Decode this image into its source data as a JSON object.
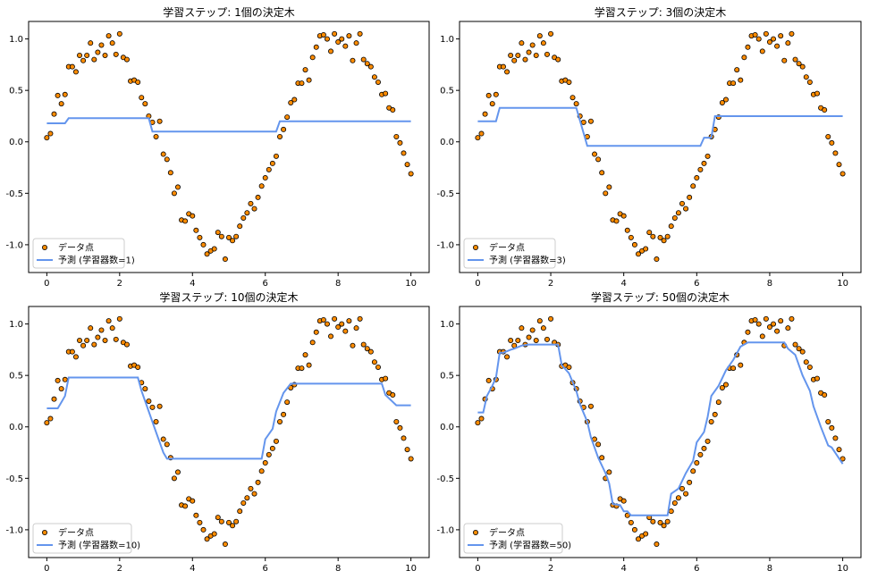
{
  "colors": {
    "point_fill": "#ff8c00",
    "point_edge": "#000000",
    "line": "#6495ed",
    "axes": "#000000",
    "background": "#ffffff"
  },
  "chart_data": [
    {
      "type": "scatter",
      "title": "学習ステップ: 1個の決定木",
      "xlabel": "",
      "ylabel": "",
      "xlim": [
        -0.5,
        10.5
      ],
      "ylim": [
        -1.27,
        1.17
      ],
      "xticks": [
        0,
        2,
        4,
        6,
        8,
        10
      ],
      "yticks": [
        -1.0,
        -0.5,
        0.0,
        0.5,
        1.0
      ],
      "ytick_labels": [
        "-1.0",
        "-0.5",
        "0.0",
        "0.5",
        "1.0"
      ],
      "grid": false,
      "legend_position": "lower-left",
      "series": [
        {
          "name": "データ点",
          "kind": "scatter"
        },
        {
          "name": "予測 (学習器数=1)",
          "kind": "line",
          "x": [
            0,
            0.5,
            0.6,
            2.8,
            2.9,
            6.3,
            6.4,
            10
          ],
          "y": [
            0.18,
            0.18,
            0.23,
            0.23,
            0.1,
            0.1,
            0.2,
            0.2
          ]
        }
      ]
    },
    {
      "type": "scatter",
      "title": "学習ステップ: 3個の決定木",
      "xlabel": "",
      "ylabel": "",
      "xlim": [
        -0.5,
        10.5
      ],
      "ylim": [
        -1.27,
        1.17
      ],
      "xticks": [
        0,
        2,
        4,
        6,
        8,
        10
      ],
      "yticks": [
        -1.0,
        -0.5,
        0.0,
        0.5,
        1.0
      ],
      "ytick_labels": [
        "-1.0",
        "-0.5",
        "0.0",
        "0.5",
        "1.0"
      ],
      "grid": false,
      "legend_position": "lower-left",
      "series": [
        {
          "name": "データ点",
          "kind": "scatter"
        },
        {
          "name": "予測 (学習器数=3)",
          "kind": "line",
          "x": [
            0,
            0.5,
            0.6,
            2.7,
            3.0,
            6.1,
            6.2,
            6.4,
            6.5,
            10
          ],
          "y": [
            0.2,
            0.2,
            0.33,
            0.33,
            -0.04,
            -0.04,
            0.04,
            0.04,
            0.25,
            0.25
          ]
        }
      ]
    },
    {
      "type": "scatter",
      "title": "学習ステップ: 10個の決定木",
      "xlabel": "",
      "ylabel": "",
      "xlim": [
        -0.5,
        10.5
      ],
      "ylim": [
        -1.27,
        1.17
      ],
      "xticks": [
        0,
        2,
        4,
        6,
        8,
        10
      ],
      "yticks": [
        -1.0,
        -0.5,
        0.0,
        0.5,
        1.0
      ],
      "ytick_labels": [
        "-1.0",
        "-0.5",
        "0.0",
        "0.5",
        "1.0"
      ],
      "grid": false,
      "legend_position": "lower-left",
      "series": [
        {
          "name": "データ点",
          "kind": "scatter"
        },
        {
          "name": "予測 (学習器数=10)",
          "kind": "line",
          "x": [
            0,
            0.3,
            0.4,
            0.5,
            0.6,
            2.5,
            2.6,
            2.8,
            3.0,
            3.2,
            3.3,
            5.9,
            6.0,
            6.2,
            6.3,
            6.5,
            6.7,
            9.2,
            9.3,
            9.6,
            10
          ],
          "y": [
            0.18,
            0.18,
            0.24,
            0.3,
            0.48,
            0.48,
            0.35,
            0.15,
            -0.05,
            -0.25,
            -0.31,
            -0.31,
            -0.12,
            -0.02,
            0.15,
            0.33,
            0.42,
            0.42,
            0.31,
            0.21,
            0.21
          ]
        }
      ]
    },
    {
      "type": "scatter",
      "title": "学習ステップ: 50個の決定木",
      "xlabel": "",
      "ylabel": "",
      "xlim": [
        -0.5,
        10.5
      ],
      "ylim": [
        -1.27,
        1.17
      ],
      "xticks": [
        0,
        2,
        4,
        6,
        8,
        10
      ],
      "yticks": [
        -1.0,
        -0.5,
        0.0,
        0.5,
        1.0
      ],
      "ytick_labels": [
        "-1.0",
        "-0.5",
        "0.0",
        "0.5",
        "1.0"
      ],
      "grid": false,
      "legend_position": "lower-left",
      "series": [
        {
          "name": "データ点",
          "kind": "scatter"
        },
        {
          "name": "予測 (学習器数=50)",
          "kind": "line",
          "x": [
            0,
            0.15,
            0.25,
            0.4,
            0.5,
            0.6,
            0.7,
            0.9,
            1.0,
            1.2,
            1.4,
            2.2,
            2.3,
            2.5,
            2.7,
            2.8,
            3.0,
            3.1,
            3.3,
            3.5,
            3.6,
            3.7,
            3.9,
            4.0,
            4.1,
            4.2,
            5.2,
            5.3,
            5.5,
            5.7,
            5.9,
            6.0,
            6.2,
            6.3,
            6.4,
            6.6,
            6.8,
            7.0,
            7.2,
            7.4,
            8.4,
            8.5,
            8.7,
            8.9,
            9.1,
            9.2,
            9.4,
            9.6,
            9.7,
            10
          ],
          "y": [
            0.14,
            0.14,
            0.3,
            0.4,
            0.48,
            0.72,
            0.72,
            0.75,
            0.76,
            0.79,
            0.8,
            0.8,
            0.6,
            0.52,
            0.35,
            0.22,
            0.05,
            -0.1,
            -0.3,
            -0.45,
            -0.55,
            -0.75,
            -0.76,
            -0.82,
            -0.82,
            -0.86,
            -0.86,
            -0.65,
            -0.6,
            -0.45,
            -0.33,
            -0.15,
            -0.05,
            0.1,
            0.3,
            0.4,
            0.55,
            0.65,
            0.78,
            0.82,
            0.82,
            0.76,
            0.7,
            0.5,
            0.35,
            0.2,
            0.0,
            -0.18,
            -0.2,
            -0.36
          ]
        }
      ]
    }
  ],
  "scatter_points": {
    "name": "データ点",
    "x": [
      0.0,
      0.1,
      0.2,
      0.3,
      0.4,
      0.5,
      0.6,
      0.7,
      0.8,
      0.9,
      1.0,
      1.1,
      1.2,
      1.3,
      1.4,
      1.5,
      1.6,
      1.7,
      1.8,
      1.9,
      2.0,
      2.1,
      2.2,
      2.3,
      2.4,
      2.5,
      2.6,
      2.7,
      2.8,
      2.9,
      3.0,
      3.1,
      3.2,
      3.3,
      3.4,
      3.5,
      3.6,
      3.7,
      3.8,
      3.9,
      4.0,
      4.1,
      4.2,
      4.3,
      4.4,
      4.5,
      4.6,
      4.7,
      4.8,
      4.9,
      5.0,
      5.1,
      5.2,
      5.3,
      5.4,
      5.5,
      5.6,
      5.7,
      5.8,
      5.9,
      6.0,
      6.1,
      6.2,
      6.3,
      6.4,
      6.5,
      6.6,
      6.7,
      6.8,
      6.9,
      7.0,
      7.1,
      7.2,
      7.3,
      7.4,
      7.5,
      7.6,
      7.7,
      7.8,
      7.9,
      8.0,
      8.1,
      8.2,
      8.3,
      8.4,
      8.5,
      8.6,
      8.7,
      8.8,
      8.9,
      9.0,
      9.1,
      9.2,
      9.3,
      9.4,
      9.5,
      9.6,
      9.7,
      9.8,
      9.9,
      10.0
    ],
    "y": [
      0.04,
      0.08,
      0.27,
      0.45,
      0.37,
      0.46,
      0.73,
      0.73,
      0.68,
      0.84,
      0.79,
      0.84,
      0.96,
      0.8,
      0.87,
      0.94,
      0.84,
      1.03,
      0.96,
      0.85,
      1.05,
      0.82,
      0.8,
      0.59,
      0.6,
      0.58,
      0.43,
      0.37,
      0.25,
      0.19,
      0.05,
      0.2,
      -0.12,
      -0.17,
      -0.3,
      -0.5,
      -0.44,
      -0.76,
      -0.77,
      -0.7,
      -0.72,
      -0.86,
      -0.93,
      -1.0,
      -1.09,
      -1.06,
      -1.04,
      -0.88,
      -0.92,
      -1.14,
      -0.93,
      -0.96,
      -0.92,
      -0.82,
      -0.74,
      -0.69,
      -0.6,
      -0.65,
      -0.54,
      -0.43,
      -0.35,
      -0.27,
      -0.21,
      -0.14,
      0.05,
      0.12,
      0.24,
      0.38,
      0.41,
      0.57,
      0.57,
      0.7,
      0.6,
      0.82,
      0.92,
      1.03,
      1.04,
      1.0,
      0.88,
      1.05,
      0.97,
      1.0,
      0.93,
      1.03,
      0.79,
      0.96,
      1.05,
      0.8,
      0.76,
      0.73,
      0.63,
      0.58,
      0.46,
      0.47,
      0.33,
      0.31,
      0.05,
      -0.01,
      -0.11,
      -0.22,
      -0.31
    ]
  }
}
